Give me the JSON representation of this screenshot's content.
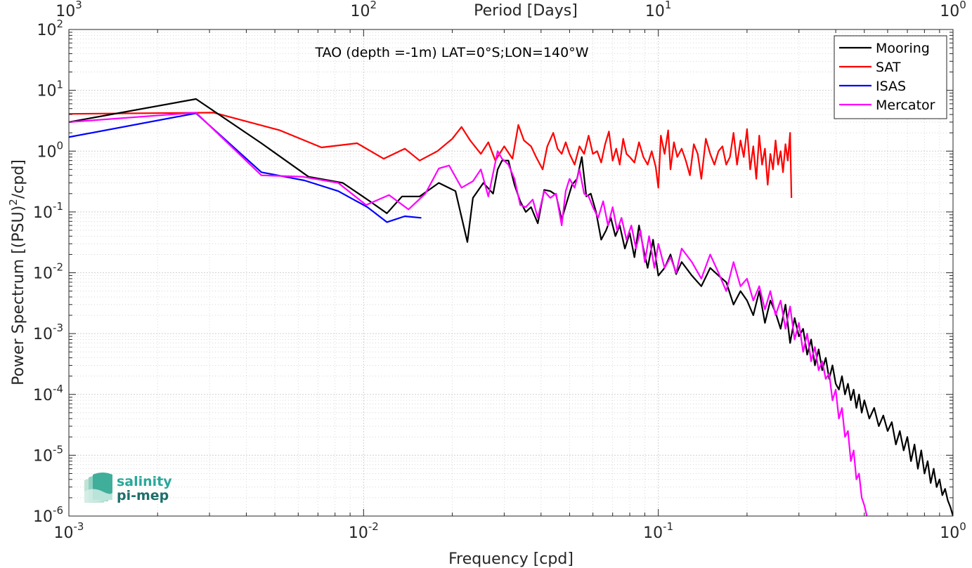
{
  "chart_data": {
    "type": "line",
    "title": "TAO (depth =-1m) LAT=0°S;LON=140°W",
    "xlabel": "Frequency [cpd]",
    "ylabel": "Power Spectrum [(PSU)^2/cpd]",
    "ylabel_parts": {
      "pre": "Power Spectrum [(PSU)",
      "sup": "2",
      "post": "/cpd]"
    },
    "top_xlabel": "Period [Days]",
    "xscale": "log",
    "yscale": "log",
    "xlim": [
      0.001,
      1
    ],
    "ylim": [
      1e-06,
      100
    ],
    "grid": true,
    "legend_position": "top-right",
    "x_ticks": [
      {
        "value": 0.001,
        "base": "10",
        "exp": "-3"
      },
      {
        "value": 0.01,
        "base": "10",
        "exp": "-2"
      },
      {
        "value": 0.1,
        "base": "10",
        "exp": "-1"
      },
      {
        "value": 1,
        "base": "10",
        "exp": "0"
      }
    ],
    "y_ticks": [
      {
        "value": 100,
        "base": "10",
        "exp": "2"
      },
      {
        "value": 10,
        "base": "10",
        "exp": "1"
      },
      {
        "value": 1,
        "base": "10",
        "exp": "0"
      },
      {
        "value": 0.1,
        "base": "10",
        "exp": "-1"
      },
      {
        "value": 0.01,
        "base": "10",
        "exp": "-2"
      },
      {
        "value": 0.001,
        "base": "10",
        "exp": "-3"
      },
      {
        "value": 0.0001,
        "base": "10",
        "exp": "-4"
      },
      {
        "value": 1e-05,
        "base": "10",
        "exp": "-5"
      },
      {
        "value": 1e-06,
        "base": "10",
        "exp": "-6"
      }
    ],
    "top_ticks": [
      {
        "days": 1000,
        "base": "10",
        "exp": "3"
      },
      {
        "days": 100,
        "base": "10",
        "exp": "2"
      },
      {
        "days": 10,
        "base": "10",
        "exp": "1"
      },
      {
        "days": 1,
        "base": "10",
        "exp": "0"
      }
    ],
    "series": [
      {
        "name": "Mooring",
        "color": "#000000",
        "x": [
          0.001,
          0.0027,
          0.0045,
          0.0065,
          0.0085,
          0.0105,
          0.012,
          0.0135,
          0.0155,
          0.018,
          0.0205,
          0.0225,
          0.0235,
          0.0255,
          0.0275,
          0.0285,
          0.0295,
          0.031,
          0.0325,
          0.034,
          0.0355,
          0.037,
          0.039,
          0.041,
          0.043,
          0.045,
          0.047,
          0.049,
          0.051,
          0.053,
          0.055,
          0.057,
          0.059,
          0.0615,
          0.064,
          0.0665,
          0.069,
          0.0715,
          0.074,
          0.077,
          0.08,
          0.083,
          0.086,
          0.089,
          0.092,
          0.096,
          0.1,
          0.105,
          0.11,
          0.115,
          0.12,
          0.13,
          0.14,
          0.15,
          0.16,
          0.17,
          0.18,
          0.19,
          0.2,
          0.21,
          0.22,
          0.23,
          0.24,
          0.25,
          0.26,
          0.27,
          0.28,
          0.29,
          0.3,
          0.31,
          0.32,
          0.33,
          0.34,
          0.35,
          0.36,
          0.37,
          0.38,
          0.39,
          0.4,
          0.41,
          0.42,
          0.43,
          0.44,
          0.45,
          0.46,
          0.47,
          0.48,
          0.49,
          0.5,
          0.52,
          0.54,
          0.56,
          0.58,
          0.6,
          0.62,
          0.64,
          0.66,
          0.68,
          0.7,
          0.72,
          0.74,
          0.76,
          0.78,
          0.8,
          0.82,
          0.84,
          0.86,
          0.88,
          0.9,
          0.92,
          0.94,
          0.96,
          0.98,
          1.0
        ],
        "y": [
          3.0,
          7.2,
          1.35,
          0.38,
          0.3,
          0.15,
          0.095,
          0.18,
          0.18,
          0.3,
          0.22,
          0.032,
          0.17,
          0.3,
          0.2,
          0.5,
          0.7,
          0.7,
          0.28,
          0.15,
          0.1,
          0.12,
          0.065,
          0.23,
          0.22,
          0.19,
          0.075,
          0.15,
          0.28,
          0.35,
          0.8,
          0.18,
          0.2,
          0.1,
          0.035,
          0.05,
          0.08,
          0.04,
          0.06,
          0.025,
          0.045,
          0.018,
          0.06,
          0.025,
          0.012,
          0.035,
          0.009,
          0.012,
          0.02,
          0.0095,
          0.015,
          0.009,
          0.006,
          0.012,
          0.009,
          0.007,
          0.003,
          0.005,
          0.0035,
          0.002,
          0.005,
          0.0015,
          0.0035,
          0.0022,
          0.0012,
          0.003,
          0.0007,
          0.0018,
          0.0009,
          0.0012,
          0.00045,
          0.0008,
          0.0003,
          0.00055,
          0.00025,
          0.0004,
          0.00018,
          0.0003,
          0.00015,
          0.00012,
          0.0002,
          0.0001,
          0.00015,
          8e-05,
          0.00012,
          6e-05,
          0.0001,
          5e-05,
          8e-05,
          4e-05,
          6e-05,
          3e-05,
          4.5e-05,
          2.5e-05,
          3.5e-05,
          1.5e-05,
          2.5e-05,
          1.2e-05,
          2e-05,
          8e-06,
          1.5e-05,
          6e-06,
          1.2e-05,
          5e-06,
          8e-06,
          3.5e-06,
          6e-06,
          3e-06,
          4e-06,
          2.2e-06,
          2.8e-06,
          1.8e-06,
          1.4e-06,
          1e-06
        ]
      },
      {
        "name": "SAT",
        "color": "#ff0000",
        "x": [
          0.001,
          0.0031,
          0.0052,
          0.0072,
          0.0095,
          0.0117,
          0.0138,
          0.0155,
          0.0178,
          0.02,
          0.0215,
          0.023,
          0.025,
          0.0265,
          0.028,
          0.03,
          0.032,
          0.0335,
          0.035,
          0.037,
          0.0385,
          0.0405,
          0.042,
          0.044,
          0.0455,
          0.047,
          0.0485,
          0.05,
          0.052,
          0.054,
          0.056,
          0.058,
          0.06,
          0.062,
          0.064,
          0.066,
          0.068,
          0.07,
          0.072,
          0.074,
          0.076,
          0.078,
          0.08,
          0.083,
          0.086,
          0.089,
          0.092,
          0.095,
          0.098,
          0.1,
          0.102,
          0.105,
          0.108,
          0.11,
          0.113,
          0.116,
          0.12,
          0.124,
          0.128,
          0.132,
          0.136,
          0.14,
          0.145,
          0.15,
          0.155,
          0.16,
          0.165,
          0.17,
          0.175,
          0.18,
          0.185,
          0.19,
          0.195,
          0.2,
          0.205,
          0.21,
          0.215,
          0.22,
          0.225,
          0.23,
          0.235,
          0.24,
          0.245,
          0.25,
          0.255,
          0.26,
          0.265,
          0.27,
          0.275,
          0.28,
          0.283
        ],
        "y": [
          4.1,
          4.3,
          2.2,
          1.15,
          1.35,
          0.75,
          1.1,
          0.7,
          1.0,
          1.6,
          2.5,
          1.5,
          0.9,
          1.4,
          0.7,
          1.2,
          0.75,
          2.7,
          1.5,
          1.2,
          0.8,
          0.5,
          1.2,
          2.0,
          1.1,
          0.9,
          1.4,
          0.9,
          0.6,
          1.2,
          0.9,
          1.8,
          0.9,
          1.0,
          0.65,
          1.3,
          2.1,
          0.7,
          1.1,
          0.6,
          1.6,
          0.9,
          0.8,
          0.65,
          1.4,
          0.8,
          0.6,
          1.0,
          0.55,
          0.25,
          1.8,
          0.9,
          2.2,
          0.5,
          1.4,
          0.8,
          1.1,
          0.7,
          0.4,
          1.3,
          0.9,
          0.35,
          1.6,
          0.9,
          0.6,
          1.0,
          1.2,
          0.6,
          0.8,
          2.0,
          0.6,
          1.5,
          0.8,
          2.3,
          0.5,
          1.2,
          0.35,
          1.8,
          0.6,
          1.1,
          0.28,
          0.9,
          0.5,
          1.5,
          0.6,
          1.0,
          0.45,
          1.3,
          0.7,
          2.0,
          0.17
        ]
      },
      {
        "name": "ISAS",
        "color": "#0000ff",
        "x": [
          0.001,
          0.0027,
          0.0045,
          0.0063,
          0.0082,
          0.0103,
          0.012,
          0.0138,
          0.0157
        ],
        "y": [
          1.7,
          4.2,
          0.45,
          0.33,
          0.22,
          0.12,
          0.068,
          0.085,
          0.08
        ]
      },
      {
        "name": "Mercator",
        "color": "#ff00ff",
        "x": [
          0.001,
          0.0027,
          0.0045,
          0.0062,
          0.0082,
          0.0102,
          0.0122,
          0.0142,
          0.0162,
          0.018,
          0.0195,
          0.0215,
          0.0235,
          0.025,
          0.0265,
          0.0285,
          0.0295,
          0.031,
          0.0325,
          0.034,
          0.0355,
          0.0375,
          0.039,
          0.041,
          0.043,
          0.045,
          0.047,
          0.0485,
          0.05,
          0.052,
          0.054,
          0.056,
          0.058,
          0.06,
          0.0625,
          0.065,
          0.0675,
          0.07,
          0.0725,
          0.075,
          0.078,
          0.081,
          0.084,
          0.087,
          0.09,
          0.093,
          0.097,
          0.1,
          0.105,
          0.11,
          0.115,
          0.12,
          0.13,
          0.14,
          0.15,
          0.16,
          0.17,
          0.18,
          0.19,
          0.2,
          0.21,
          0.22,
          0.23,
          0.24,
          0.25,
          0.26,
          0.27,
          0.28,
          0.29,
          0.3,
          0.31,
          0.32,
          0.33,
          0.34,
          0.35,
          0.36,
          0.37,
          0.38,
          0.39,
          0.4,
          0.41,
          0.42,
          0.43,
          0.44,
          0.45,
          0.46,
          0.47,
          0.48,
          0.49,
          0.5,
          0.51
        ],
        "y": [
          3.0,
          4.3,
          0.4,
          0.38,
          0.3,
          0.13,
          0.19,
          0.11,
          0.2,
          0.52,
          0.58,
          0.25,
          0.32,
          0.5,
          0.18,
          1.0,
          0.75,
          0.6,
          0.35,
          0.13,
          0.12,
          0.16,
          0.08,
          0.22,
          0.17,
          0.2,
          0.06,
          0.22,
          0.35,
          0.25,
          0.5,
          0.2,
          0.18,
          0.12,
          0.08,
          0.15,
          0.06,
          0.12,
          0.05,
          0.08,
          0.035,
          0.06,
          0.025,
          0.05,
          0.015,
          0.04,
          0.012,
          0.03,
          0.012,
          0.018,
          0.01,
          0.025,
          0.015,
          0.008,
          0.02,
          0.01,
          0.005,
          0.015,
          0.006,
          0.008,
          0.0035,
          0.006,
          0.0025,
          0.005,
          0.002,
          0.0035,
          0.0012,
          0.0028,
          0.0008,
          0.0015,
          0.0005,
          0.001,
          0.00035,
          0.0006,
          0.00025,
          0.00035,
          0.00018,
          0.00022,
          8e-05,
          0.00012,
          4e-05,
          6e-05,
          2e-05,
          2.5e-05,
          8e-06,
          1.2e-05,
          4e-06,
          5e-06,
          2e-06,
          1.5e-06,
          1e-06
        ]
      }
    ]
  },
  "logo": {
    "line1": "salinity",
    "line2": "pi-mep"
  }
}
